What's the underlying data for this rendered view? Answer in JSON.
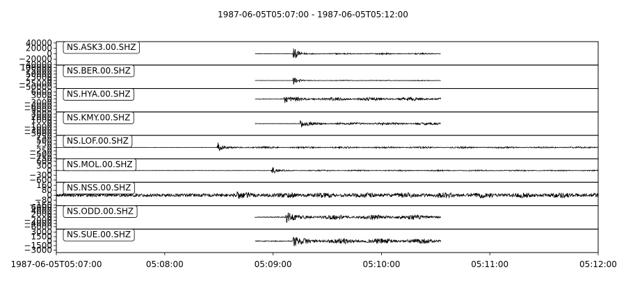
{
  "chart_data": {
    "type": "line",
    "title": "1987-06-05T05:07:00  -  1987-06-05T05:12:00",
    "xlabel": "",
    "x_range": [
      "1987-06-05T05:07:00",
      "1987-06-05T05:12:00"
    ],
    "x_ticks": [
      {
        "t": "1987-06-05T05:07:00",
        "label": "1987-06-05T05:07:00"
      },
      {
        "t": "1987-06-05T05:08:00",
        "label": "05:08:00"
      },
      {
        "t": "1987-06-05T05:09:00",
        "label": "05:09:00"
      },
      {
        "t": "1987-06-05T05:10:00",
        "label": "05:10:00"
      },
      {
        "t": "1987-06-05T05:11:00",
        "label": "05:11:00"
      },
      {
        "t": "1987-06-05T05:12:00",
        "label": "05:12:00"
      }
    ],
    "line_color": "#000000",
    "grid": false,
    "series": [
      {
        "name": "NS.ASK3.00.SHZ",
        "ylim": [
          -42000,
          45000
        ],
        "y_ticks": [
          {
            "v": 40000,
            "label": "40000"
          },
          {
            "v": 20000,
            "label": "20000"
          },
          {
            "v": 0,
            "label": "0"
          },
          {
            "v": -20000,
            "label": "−20000"
          },
          {
            "v": -40000,
            "label": "−40000"
          }
        ],
        "start": "1987-06-05T05:08:50",
        "end": "1987-06-05T05:10:33",
        "onset": "1987-06-05T05:09:11",
        "peak": 40000,
        "coda": 2500,
        "noise": 700
      },
      {
        "name": "NS.BER.00.SHZ",
        "ylim": [
          -62000,
          120000
        ],
        "y_ticks": [
          {
            "v": 100000,
            "label": "100000"
          },
          {
            "v": 75000,
            "label": "75000"
          },
          {
            "v": 50000,
            "label": "50000"
          },
          {
            "v": 25000,
            "label": "25000"
          },
          {
            "v": 0,
            "label": "0"
          },
          {
            "v": -25000,
            "label": "−25000"
          },
          {
            "v": -50000,
            "label": "−50000"
          }
        ],
        "start": "1987-06-05T05:08:50",
        "end": "1987-06-05T05:10:33",
        "onset": "1987-06-05T05:09:11",
        "peak": 55000,
        "coda": 3000,
        "noise": 900
      },
      {
        "name": "NS.HYA.00.SHZ",
        "ylim": [
          -11000,
          9000
        ],
        "y_ticks": [
          {
            "v": 6000,
            "label": "6000"
          },
          {
            "v": 3000,
            "label": "3000"
          },
          {
            "v": 0,
            "label": "0"
          },
          {
            "v": -3000,
            "label": "−3000"
          },
          {
            "v": -6000,
            "label": "−6000"
          },
          {
            "v": -9000,
            "label": "−9000"
          }
        ],
        "start": "1987-06-05T05:08:50",
        "end": "1987-06-05T05:10:33",
        "onset": "1987-06-05T05:09:06",
        "peak": 6000,
        "coda": 1500,
        "noise": 200
      },
      {
        "name": "NS.KMY.00.SHZ",
        "ylim": [
          -3600,
          3600
        ],
        "y_ticks": [
          {
            "v": 3000,
            "label": "3000"
          },
          {
            "v": 2000,
            "label": "2000"
          },
          {
            "v": 1000,
            "label": "1000"
          },
          {
            "v": 0,
            "label": "0"
          },
          {
            "v": -1000,
            "label": "−1000"
          },
          {
            "v": -2000,
            "label": "−2000"
          },
          {
            "v": -3000,
            "label": "−3000"
          }
        ],
        "start": "1987-06-05T05:08:50",
        "end": "1987-06-05T05:10:33",
        "onset": "1987-06-05T05:09:15",
        "peak": 2300,
        "coda": 400,
        "noise": 60
      },
      {
        "name": "NS.LOF.00.SHZ",
        "ylim": [
          -800,
          850
        ],
        "y_ticks": [
          {
            "v": 750,
            "label": "750"
          },
          {
            "v": 500,
            "label": "500"
          },
          {
            "v": 250,
            "label": "250"
          },
          {
            "v": 0,
            "label": "0"
          },
          {
            "v": -250,
            "label": "−250"
          },
          {
            "v": -500,
            "label": "−500"
          },
          {
            "v": -750,
            "label": "−750"
          }
        ],
        "start": "1987-06-05T05:07:00",
        "end": "1987-06-05T05:12:00",
        "onset": "1987-06-05T05:08:29",
        "peak": 600,
        "coda": 60,
        "noise": 10
      },
      {
        "name": "NS.MOL.00.SHZ",
        "ylim": [
          -750,
          750
        ],
        "y_ticks": [
          {
            "v": 600,
            "label": "600"
          },
          {
            "v": 300,
            "label": "300"
          },
          {
            "v": 0,
            "label": "0"
          },
          {
            "v": -300,
            "label": "−300"
          },
          {
            "v": -600,
            "label": "−600"
          }
        ],
        "start": "1987-06-05T05:07:00",
        "end": "1987-06-05T05:12:00",
        "onset": "1987-06-05T05:08:59",
        "peak": 550,
        "coda": 40,
        "noise": 10
      },
      {
        "name": "NS.NSS.00.SHZ",
        "ylim": [
          -170,
          210
        ],
        "y_ticks": [
          {
            "v": 160,
            "label": "160"
          },
          {
            "v": 80,
            "label": "80"
          },
          {
            "v": 0,
            "label": "0"
          },
          {
            "v": -80,
            "label": "−80"
          },
          {
            "v": -160,
            "label": "−160"
          }
        ],
        "start": "1987-06-05T05:07:00",
        "end": "1987-06-05T05:12:00",
        "onset": "1987-06-05T05:08:40",
        "peak": 110,
        "coda": 45,
        "noise": 25
      },
      {
        "name": "NS.ODD.00.SHZ",
        "ylim": [
          -7500,
          7200
        ],
        "y_ticks": [
          {
            "v": 6000,
            "label": "6000"
          },
          {
            "v": 4000,
            "label": "4000"
          },
          {
            "v": 2000,
            "label": "2000"
          },
          {
            "v": 0,
            "label": "0"
          },
          {
            "v": -2000,
            "label": "−2000"
          },
          {
            "v": -4000,
            "label": "−4000"
          },
          {
            "v": -6000,
            "label": "−6000"
          }
        ],
        "start": "1987-06-05T05:08:50",
        "end": "1987-06-05T05:10:33",
        "onset": "1987-06-05T05:09:07",
        "peak": 6000,
        "coda": 1500,
        "noise": 250
      },
      {
        "name": "NS.SUE.00.SHZ",
        "ylim": [
          -3800,
          4000
        ],
        "y_ticks": [
          {
            "v": 3000,
            "label": "3000"
          },
          {
            "v": 1500,
            "label": "1500"
          },
          {
            "v": 0,
            "label": "0"
          },
          {
            "v": -1500,
            "label": "−1500"
          },
          {
            "v": -3000,
            "label": "−3000"
          }
        ],
        "start": "1987-06-05T05:08:50",
        "end": "1987-06-05T05:10:33",
        "onset": "1987-06-05T05:09:11",
        "peak": 3000,
        "coda": 900,
        "noise": 150
      }
    ]
  }
}
